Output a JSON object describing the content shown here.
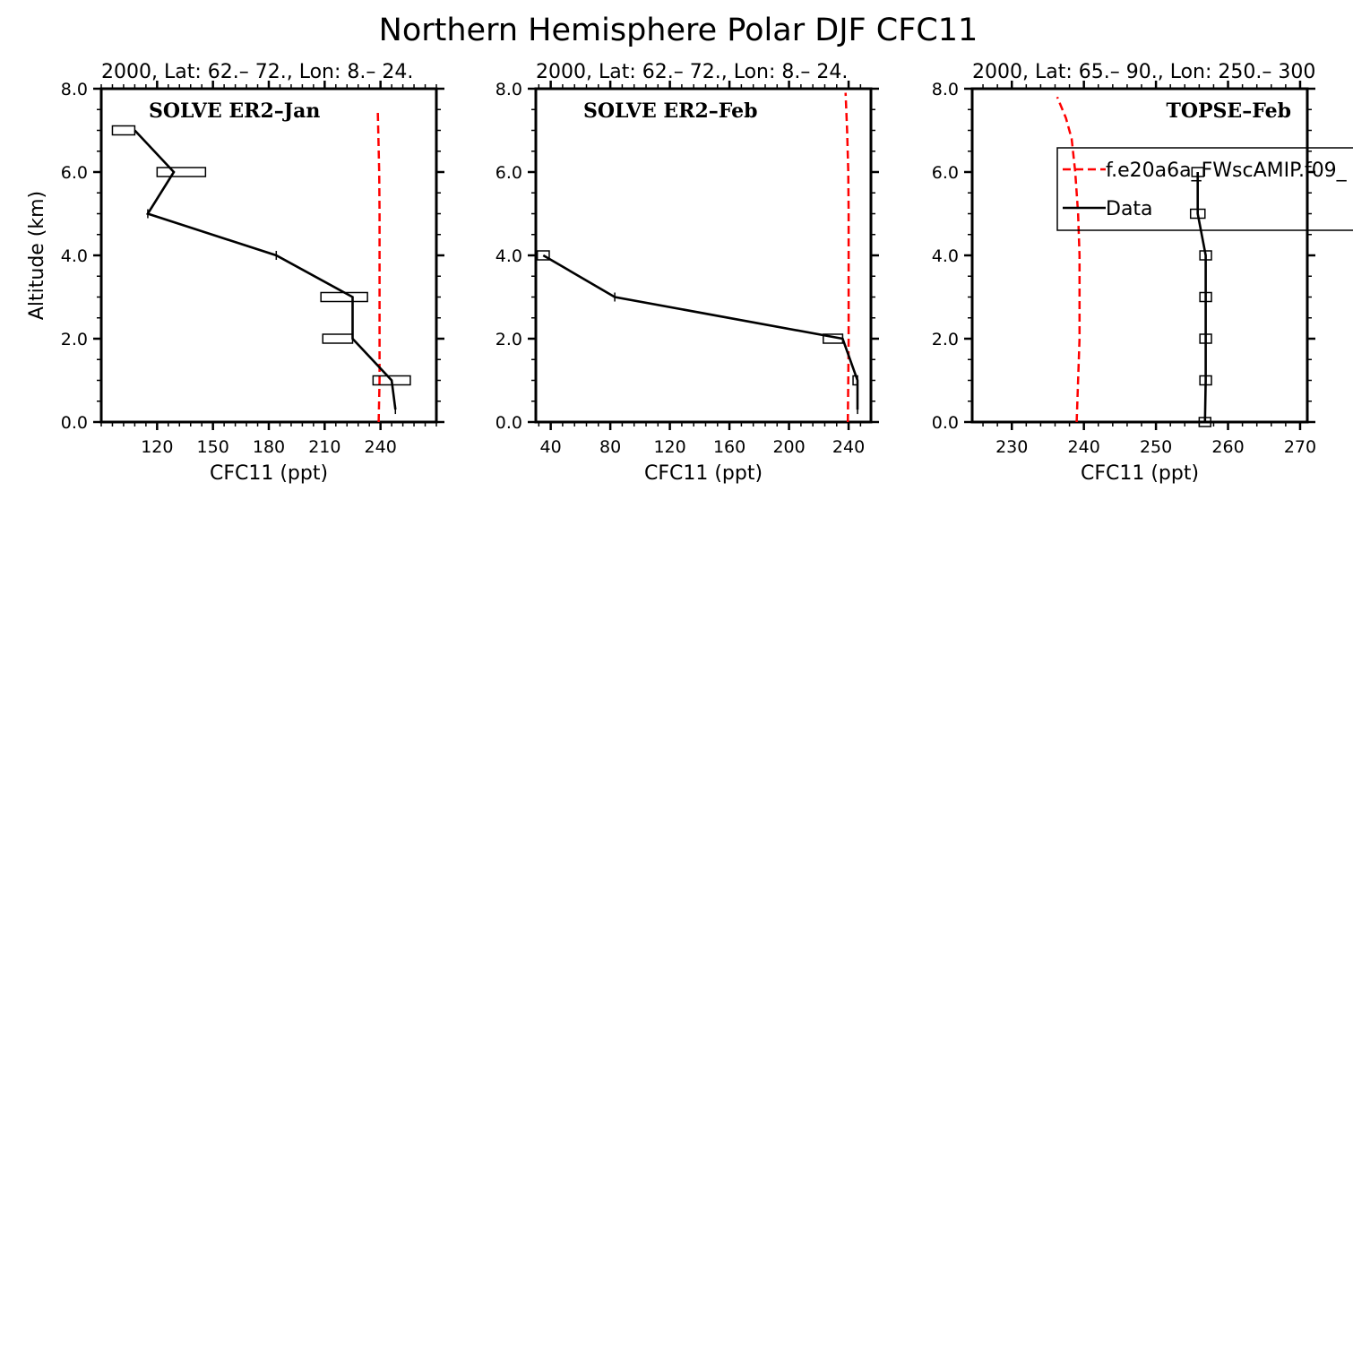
{
  "figure_title": "Northern Hemisphere Polar DJF CFC11",
  "colors": {
    "model": "#ff0000",
    "data": "#000000"
  },
  "chart_data": [
    {
      "type": "line",
      "top_title": "2000, Lat: 62.– 72., Lon: 8.– 24.",
      "panel_label": "SOLVE ER2–Jan",
      "panel_label_pos": "top-left",
      "xlabel": "CFC11 (ppt)",
      "ylabel": "Altitude (km)",
      "xlim": [
        90,
        270
      ],
      "ylim": [
        0,
        8
      ],
      "xticks": [
        120,
        150,
        180,
        210,
        240
      ],
      "xtick_labels": [
        "120",
        "150",
        "180",
        "210",
        "240"
      ],
      "yticks": [
        0,
        2,
        4,
        6,
        8
      ],
      "ytick_labels": [
        "0.0",
        "2.0",
        "4.0",
        "6.0",
        "8.0"
      ],
      "series": [
        {
          "style": "dashed",
          "color": "#ff0000",
          "x": [
            239.0,
            239.5,
            239.5,
            239.5,
            239.5,
            239.5,
            239.3,
            238.5
          ],
          "y": [
            0,
            1,
            2,
            3,
            4,
            5,
            6,
            7.5
          ]
        },
        {
          "style": "solid",
          "color": "#000000",
          "x": [
            248,
            246,
            225,
            225,
            184,
            115,
            129,
            108
          ],
          "y": [
            0.3,
            1,
            2,
            3,
            4,
            5,
            6,
            7
          ],
          "xerr_low": [
            248,
            236,
            209,
            208,
            184,
            115,
            120,
            96
          ],
          "xerr_high": [
            248,
            256,
            225,
            233,
            184,
            115,
            146,
            108
          ]
        }
      ]
    },
    {
      "type": "line",
      "top_title": "2000, Lat: 62.– 72., Lon: 8.– 24.",
      "panel_label": "SOLVE ER2–Feb",
      "panel_label_pos": "top-left",
      "xlabel": "CFC11 (ppt)",
      "ylabel": "",
      "xlim": [
        30,
        255
      ],
      "ylim": [
        0,
        8
      ],
      "xticks": [
        40,
        80,
        120,
        160,
        200,
        240
      ],
      "xtick_labels": [
        "40",
        "80",
        "120",
        "160",
        "200",
        "240"
      ],
      "yticks": [
        0,
        2,
        4,
        6,
        8
      ],
      "ytick_labels": [
        "0.0",
        "2.0",
        "4.0",
        "6.0",
        "8.0"
      ],
      "series": [
        {
          "style": "dashed",
          "color": "#ff0000",
          "x": [
            239.5,
            239.8,
            240.0,
            240.0,
            240.0,
            240.0,
            239.8,
            239.0,
            238.0
          ],
          "y": [
            0,
            1,
            2,
            3,
            4,
            5,
            6,
            7,
            7.9
          ]
        },
        {
          "style": "solid",
          "color": "#000000",
          "x": [
            246,
            246,
            236,
            83,
            35
          ],
          "y": [
            0.3,
            1,
            2,
            3,
            4
          ],
          "xerr_low": [
            246,
            243,
            223,
            83,
            31
          ],
          "xerr_high": [
            246,
            246,
            236,
            83,
            39
          ]
        }
      ]
    },
    {
      "type": "line",
      "top_title": "2000, Lat: 65.– 90., Lon: 250.– 300",
      "panel_label": "TOPSE–Feb",
      "panel_label_pos": "top-right",
      "xlabel": "CFC11 (ppt)",
      "ylabel": "",
      "xlim": [
        224.5,
        271
      ],
      "ylim": [
        0,
        8
      ],
      "xticks": [
        230,
        240,
        250,
        260,
        270
      ],
      "xtick_labels": [
        "230",
        "240",
        "250",
        "260",
        "270"
      ],
      "yticks": [
        0,
        2,
        4,
        6,
        8
      ],
      "ytick_labels": [
        "0.0",
        "2.0",
        "4.0",
        "6.0",
        "8.0"
      ],
      "legend": {
        "position": "top-right",
        "entries": [
          {
            "label": "f.e20a6a_FWscAMIP.f09_",
            "style": "dashed",
            "color": "#ff0000"
          },
          {
            "label": "Data",
            "style": "solid",
            "color": "#000000"
          }
        ]
      },
      "series": [
        {
          "style": "dashed",
          "color": "#ff0000",
          "x": [
            239.0,
            239.2,
            239.4,
            239.4,
            239.4,
            239.2,
            238.8,
            238.3,
            237.5,
            236.3
          ],
          "y": [
            0,
            1,
            2,
            3,
            4,
            5,
            6,
            6.8,
            7.3,
            7.8
          ]
        },
        {
          "style": "solid",
          "color": "#000000",
          "x": [
            256.8,
            256.9,
            256.9,
            256.9,
            256.9,
            255.8,
            255.8
          ],
          "y": [
            0,
            1,
            2,
            3,
            4,
            5,
            6
          ],
          "xerr_low": [
            256.0,
            256.1,
            256.1,
            256.1,
            256.1,
            254.8,
            255.0
          ],
          "xerr_high": [
            257.6,
            257.7,
            257.7,
            257.7,
            257.7,
            256.8,
            256.6
          ]
        }
      ]
    }
  ]
}
